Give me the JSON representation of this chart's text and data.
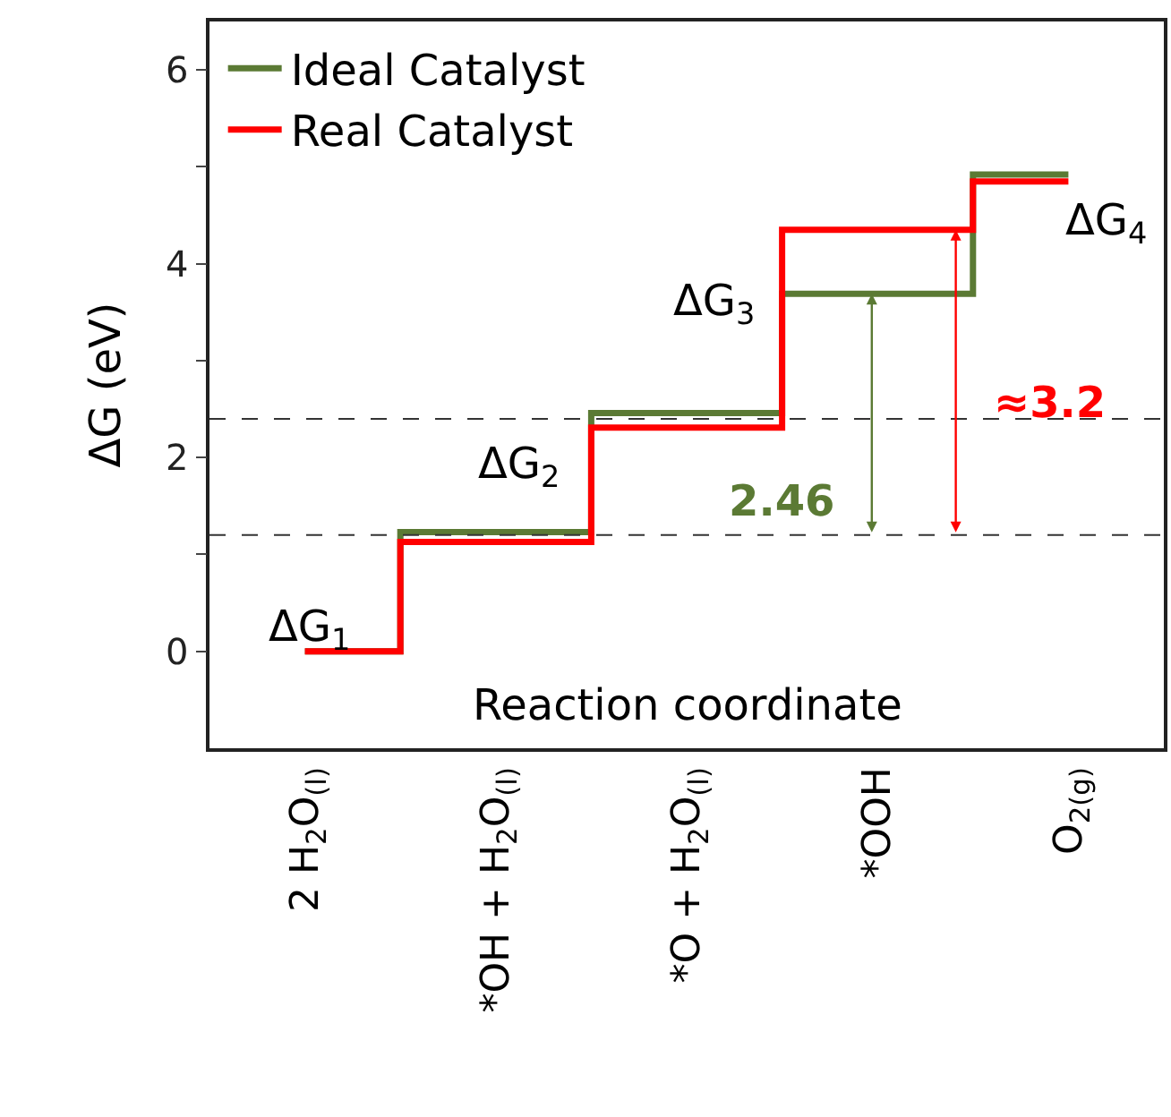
{
  "chart_data": {
    "type": "step",
    "ylabel": "ΔG (eV)",
    "categories": [
      "2 H$_{2}$O$_{(l)}$",
      "*OH + H$_{2}$O$_{(l)}$",
      "*O + H$_{2}$O$_{(l)}$",
      "*OOH",
      "O$_{2(g)}$"
    ],
    "series": [
      {
        "name": "Ideal Catalyst",
        "color": "#5b7a34",
        "values": [
          0,
          1.23,
          2.46,
          3.69,
          4.92
        ]
      },
      {
        "name": "Real Catalyst",
        "color": "#ff0000",
        "values": [
          0,
          1.13,
          2.31,
          4.35,
          4.85
        ]
      }
    ],
    "ylim": [
      -1,
      6.5
    ],
    "yticks": [
      0,
      {
        "value": 1,
        "label": null
      },
      2,
      {
        "value": 3,
        "label": null
      },
      4,
      {
        "value": 5,
        "label": null
      },
      6
    ],
    "ref_lines": [
      {
        "axis": "y",
        "value": 1.2,
        "line_style": "dashed",
        "color": "#333333"
      },
      {
        "axis": "y",
        "value": 2.4,
        "line_style": "dashed",
        "color": "#333333"
      }
    ],
    "annotations": [
      "ΔG$_{1}$",
      "ΔG$_{2}$",
      "ΔG$_{3}$",
      "ΔG$_{4}$",
      "Reaction coordinate",
      "2.46",
      "≈3.2"
    ],
    "legend": "top left"
  }
}
